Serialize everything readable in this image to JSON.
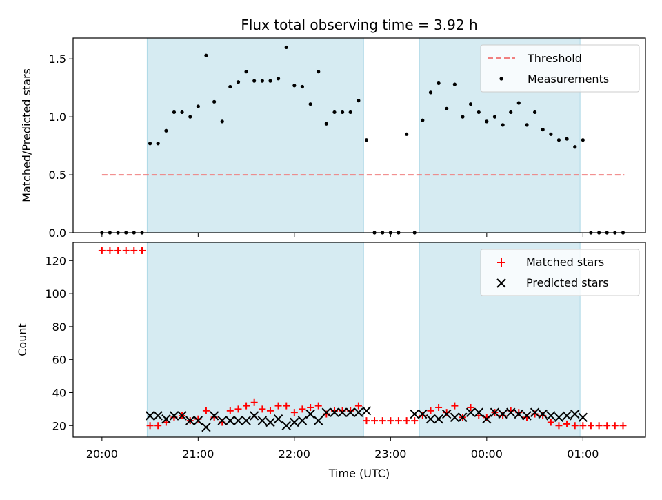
{
  "chart_data": {
    "type": "scatter",
    "title": "Flux total observing time = 3.92 h",
    "xlabel": "Time (UTC)",
    "x_units": "hours since 20:00 UTC",
    "x_ticks": [
      {
        "x": 0,
        "label": "20:00"
      },
      {
        "x": 1,
        "label": "21:00"
      },
      {
        "x": 2,
        "label": "22:00"
      },
      {
        "x": 3,
        "label": "23:00"
      },
      {
        "x": 4,
        "label": "00:00"
      },
      {
        "x": 5,
        "label": "01:00"
      }
    ],
    "xlim": [
      -0.3,
      5.65
    ],
    "shaded_intervals": [
      [
        0.47,
        2.72
      ],
      [
        3.3,
        4.97
      ]
    ],
    "shade_color": "#add8e6",
    "top": {
      "ylabel": "Matched/Predicted stars",
      "ylim": [
        0,
        1.68
      ],
      "y_ticks": [
        0,
        0.5,
        1.0,
        1.5
      ],
      "y_tick_labels": [
        "0.0",
        "0.5",
        "1.0",
        "1.5"
      ],
      "threshold": {
        "name": "Threshold",
        "value": 0.5,
        "x_range": [
          0,
          5.43
        ],
        "color": "#f08080"
      },
      "measurements": {
        "name": "Measurements",
        "color": "#000000",
        "x": [
          0,
          0.083,
          0.167,
          0.25,
          0.333,
          0.417,
          0.5,
          0.583,
          0.667,
          0.75,
          0.833,
          0.917,
          1.0,
          1.083,
          1.167,
          1.25,
          1.333,
          1.417,
          1.5,
          1.583,
          1.667,
          1.75,
          1.833,
          1.917,
          2.0,
          2.083,
          2.167,
          2.25,
          2.333,
          2.417,
          2.5,
          2.583,
          2.667,
          2.75,
          2.833,
          2.917,
          3.0,
          3.083,
          3.167,
          3.25,
          3.333,
          3.417,
          3.5,
          3.583,
          3.667,
          3.75,
          3.833,
          3.917,
          4.0,
          4.083,
          4.167,
          4.25,
          4.333,
          4.417,
          4.5,
          4.583,
          4.667,
          4.75,
          4.833,
          4.917,
          5.0,
          5.083,
          5.167,
          5.25,
          5.333,
          5.417
        ],
        "y": [
          0,
          0,
          0,
          0,
          0,
          0,
          0.77,
          0.77,
          0.88,
          1.04,
          1.04,
          1.0,
          1.09,
          1.53,
          1.13,
          0.96,
          1.26,
          1.3,
          1.39,
          1.31,
          1.31,
          1.31,
          1.33,
          1.6,
          1.27,
          1.26,
          1.11,
          1.39,
          0.94,
          1.04,
          1.04,
          1.04,
          1.14,
          0.8,
          0,
          0,
          0,
          0,
          0.85,
          0,
          0.97,
          1.21,
          1.29,
          1.07,
          1.28,
          1.0,
          1.11,
          1.04,
          0.96,
          1.0,
          0.93,
          1.04,
          1.12,
          0.93,
          1.04,
          0.89,
          0.85,
          0.8,
          0.81,
          0.74,
          0.8,
          0,
          0,
          0,
          0,
          0
        ]
      }
    },
    "bottom": {
      "ylabel": "Count",
      "ylim": [
        13,
        131
      ],
      "y_ticks": [
        20,
        40,
        60,
        80,
        100,
        120
      ],
      "y_tick_labels": [
        "20",
        "40",
        "60",
        "80",
        "100",
        "120"
      ],
      "matched": {
        "name": "Matched stars",
        "color": "#ff0000",
        "x": [
          0,
          0.083,
          0.167,
          0.25,
          0.333,
          0.417,
          0.5,
          0.583,
          0.667,
          0.75,
          0.833,
          0.917,
          1.0,
          1.083,
          1.167,
          1.25,
          1.333,
          1.417,
          1.5,
          1.583,
          1.667,
          1.75,
          1.833,
          1.917,
          2.0,
          2.083,
          2.167,
          2.25,
          2.333,
          2.417,
          2.5,
          2.583,
          2.667,
          2.75,
          2.833,
          2.917,
          3.0,
          3.083,
          3.167,
          3.25,
          3.333,
          3.417,
          3.5,
          3.583,
          3.667,
          3.75,
          3.833,
          3.917,
          4.0,
          4.083,
          4.167,
          4.25,
          4.333,
          4.417,
          4.5,
          4.583,
          4.667,
          4.75,
          4.833,
          4.917,
          5.0,
          5.083,
          5.167,
          5.25,
          5.333,
          5.417
        ],
        "y": [
          126,
          126,
          126,
          126,
          126,
          126,
          20,
          20,
          22,
          25,
          26,
          23,
          24,
          29,
          25,
          22,
          29,
          30,
          32,
          34,
          30,
          29,
          32,
          32,
          28,
          30,
          31,
          32,
          27,
          29,
          29,
          29,
          32,
          23,
          23,
          23,
          23,
          23,
          23,
          23,
          26,
          29,
          31,
          28,
          32,
          25,
          31,
          26,
          25,
          28,
          26,
          29,
          28,
          25,
          27,
          26,
          22,
          20,
          21,
          20,
          20,
          20,
          20,
          20,
          20,
          20
        ]
      },
      "predicted": {
        "name": "Predicted stars",
        "color": "#000000",
        "x": [
          0.5,
          0.583,
          0.667,
          0.75,
          0.833,
          0.917,
          1.0,
          1.083,
          1.167,
          1.25,
          1.333,
          1.417,
          1.5,
          1.583,
          1.667,
          1.75,
          1.833,
          1.917,
          2.0,
          2.083,
          2.167,
          2.25,
          2.333,
          2.417,
          2.5,
          2.583,
          2.667,
          2.75,
          3.25,
          3.333,
          3.417,
          3.5,
          3.583,
          3.667,
          3.75,
          3.833,
          3.917,
          4.0,
          4.083,
          4.167,
          4.25,
          4.333,
          4.417,
          4.5,
          4.583,
          4.667,
          4.75,
          4.833,
          4.917,
          5.0
        ],
        "y": [
          26,
          26,
          24,
          26,
          26,
          23,
          23,
          19,
          26,
          23,
          23,
          23,
          23,
          26,
          23,
          22,
          24,
          20,
          22,
          23,
          27,
          23,
          28,
          28,
          28,
          28,
          28,
          29,
          27,
          27,
          24,
          24,
          27,
          25,
          25,
          28,
          28,
          24,
          28,
          27,
          28,
          27,
          26,
          28,
          27,
          26,
          25,
          26,
          27,
          25
        ]
      }
    }
  }
}
